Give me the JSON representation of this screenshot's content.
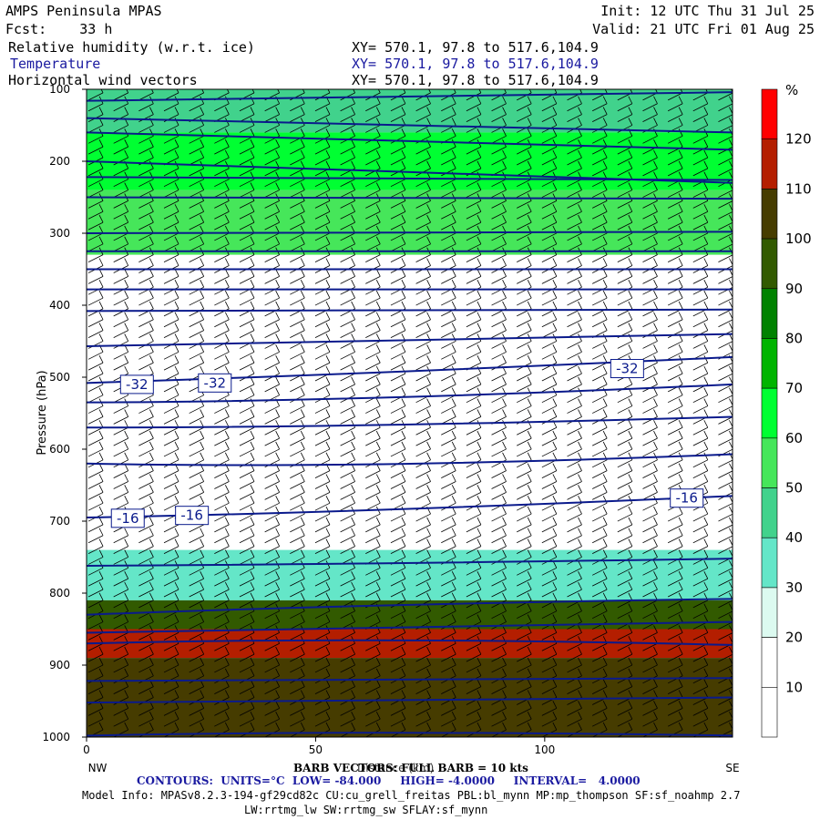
{
  "header": {
    "model": "AMPS Peninsula MPAS",
    "init": "Init: 12 UTC Thu 31 Jul 25",
    "fcst": "Fcst:    33 h",
    "valid": "Valid: 21 UTC Fri 01 Aug 25",
    "field1": "Relative humidity (w.r.t. ice)",
    "field2": "Temperature",
    "field3": "Horizontal wind vectors",
    "xy1": "XY= 570.1, 97.8 to 517.6,104.9",
    "xy2": "XY= 570.1, 97.8 to 517.6,104.9",
    "xy3": "XY= 570.1, 97.8 to 517.6,104.9"
  },
  "footer": {
    "barb": "BARB VECTORS: FULL BARB = 10 kts",
    "xlabel_overlap": "Distance (km)",
    "contours": "CONTOURS:  UNITS=°C  LOW= -84.000     HIGH= -4.0000     INTERVAL=   4.0000",
    "model_info": "Model Info: MPASv8.2.3-194-gf29cd82c CU:cu_grell_freitas PBL:bl_mynn MP:mp_thompson SF:sf_noahmp 2.7",
    "model_info2": "LW:rrtmg_lw SW:rrtmg_sw SFLAY:sf_mynn"
  },
  "colorbar": {
    "unit": "%",
    "labels": [
      "10",
      "20",
      "30",
      "40",
      "50",
      "60",
      "70",
      "80",
      "90",
      "100",
      "110",
      "120"
    ],
    "colors": [
      "#ffffff",
      "#ffffff",
      "#dcfaf0",
      "#64e6c8",
      "#41d28c",
      "#46e65a",
      "#00ff32",
      "#00b400",
      "#008200",
      "#325a00",
      "#463c00",
      "#b41e00",
      "#ff0000"
    ]
  },
  "chart_data": {
    "type": "heatmap",
    "ylabel": "Pressure (hPa)",
    "xlabel": "Distance (km)",
    "x_ticks": [
      "0",
      "50",
      "100"
    ],
    "y_ticks": [
      "100",
      "200",
      "300",
      "400",
      "500",
      "600",
      "700",
      "800",
      "900",
      "1000"
    ],
    "x_endpoints": {
      "left": "NW",
      "right": "SE"
    },
    "xlim": [
      0,
      141
    ],
    "ylim": [
      1000,
      100
    ],
    "contour_labels": [
      {
        "text": "-32",
        "x": 11,
        "p": 510
      },
      {
        "text": "-32",
        "x": 28,
        "p": 508
      },
      {
        "text": "-32",
        "x": 118,
        "p": 488
      },
      {
        "text": "-16",
        "x": 9,
        "p": 696
      },
      {
        "text": "-16",
        "x": 23,
        "p": 692
      },
      {
        "text": "-16",
        "x": 131,
        "p": 668
      }
    ],
    "temperature_contours_p_at_x": [
      {
        "x": [
          0,
          60,
          141
        ],
        "p": [
          116,
          110,
          104
        ]
      },
      {
        "x": [
          0,
          60,
          141
        ],
        "p": [
          140,
          150,
          160
        ]
      },
      {
        "x": [
          0,
          60,
          141
        ],
        "p": [
          160,
          172,
          184
        ]
      },
      {
        "x": [
          0,
          60,
          141
        ],
        "p": [
          200,
          212,
          230
        ]
      },
      {
        "x": [
          0,
          60,
          141
        ],
        "p": [
          222,
          224,
          226
        ]
      },
      {
        "x": [
          0,
          60,
          141
        ],
        "p": [
          250,
          252,
          252
        ]
      },
      {
        "x": [
          0,
          60,
          141
        ],
        "p": [
          300,
          300,
          298
        ]
      },
      {
        "x": [
          0,
          60,
          141
        ],
        "p": [
          325,
          325,
          325
        ]
      },
      {
        "x": [
          0,
          60,
          141
        ],
        "p": [
          350,
          350,
          350
        ]
      },
      {
        "x": [
          0,
          60,
          141
        ],
        "p": [
          378,
          378,
          378
        ]
      },
      {
        "x": [
          0,
          60,
          141
        ],
        "p": [
          408,
          408,
          406
        ]
      },
      {
        "x": [
          0,
          60,
          141
        ],
        "p": [
          457,
          448,
          440
        ]
      },
      {
        "x": [
          0,
          60,
          141
        ],
        "p": [
          508,
          496,
          472
        ]
      },
      {
        "x": [
          0,
          60,
          141
        ],
        "p": [
          535,
          534,
          510
        ]
      },
      {
        "x": [
          0,
          60,
          141
        ],
        "p": [
          570,
          570,
          555
        ]
      },
      {
        "x": [
          0,
          60,
          141
        ],
        "p": [
          620,
          628,
          607
        ]
      },
      {
        "x": [
          0,
          60,
          141
        ],
        "p": [
          695,
          688,
          665
        ]
      },
      {
        "x": [
          0,
          60,
          141
        ],
        "p": [
          762,
          760,
          752
        ]
      },
      {
        "x": [
          0,
          60,
          141
        ],
        "p": [
          830,
          815,
          808
        ]
      },
      {
        "x": [
          0,
          60,
          141
        ],
        "p": [
          855,
          848,
          840
        ]
      },
      {
        "x": [
          0,
          60,
          141
        ],
        "p": [
          870,
          860,
          872
        ]
      },
      {
        "x": [
          0,
          60,
          141
        ],
        "p": [
          922,
          920,
          918
        ]
      },
      {
        "x": [
          0,
          60,
          141
        ],
        "p": [
          952,
          950,
          945
        ]
      },
      {
        "x": [
          0,
          60,
          141
        ],
        "p": [
          998,
          990,
          998
        ]
      }
    ],
    "rh_bands": [
      {
        "p_top": 100,
        "p_bot": 160,
        "rh": 45
      },
      {
        "p_top": 160,
        "p_bot": 240,
        "rh": 60
      },
      {
        "p_top": 240,
        "p_bot": 330,
        "rh": 50
      },
      {
        "p_top": 330,
        "p_bot": 740,
        "rh": 10
      },
      {
        "p_top": 740,
        "p_bot": 810,
        "rh": 35
      },
      {
        "p_top": 810,
        "p_bot": 850,
        "rh": 90
      },
      {
        "p_top": 850,
        "p_bot": 890,
        "rh": 115
      },
      {
        "p_top": 890,
        "p_bot": 1000,
        "rh": 100
      }
    ]
  }
}
